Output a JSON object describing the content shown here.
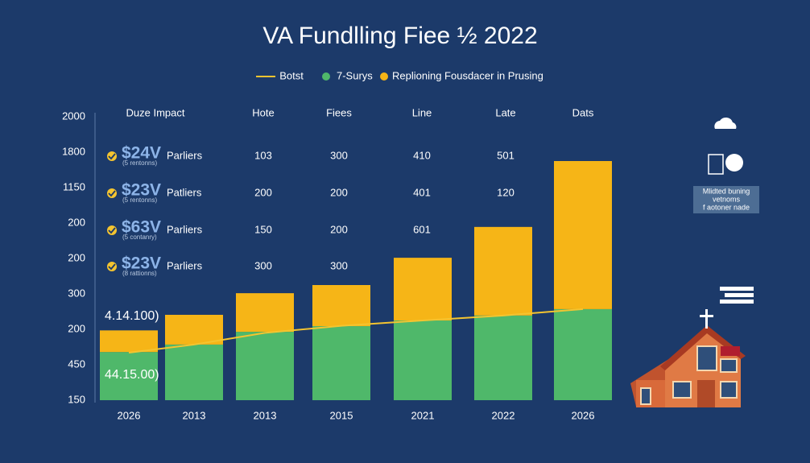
{
  "chart_data": {
    "type": "bar",
    "title": "VA Fundlling Fiee ½ 2022",
    "categories": [
      "2026",
      "2013",
      "2013",
      "2015",
      "2021",
      "2022",
      "2026"
    ],
    "series": [
      {
        "name": "Botst",
        "type": "line",
        "color": "#f4c430",
        "values": [
          1.34,
          1.57,
          1.9,
          2.1,
          2.25,
          2.39,
          2.57
        ]
      },
      {
        "name": "7-Surys",
        "type": "bar",
        "color": "#4fb86a",
        "values": [
          1.36,
          1.57,
          1.93,
          2.09,
          2.25,
          2.39,
          2.57
        ]
      },
      {
        "name": "Replioning Fousdacer in Prusing",
        "type": "bar",
        "color": "#f6b517",
        "values": [
          0.61,
          0.84,
          1.09,
          1.16,
          1.77,
          2.5,
          4.18
        ]
      }
    ],
    "ylim": [
      0,
      8
    ],
    "yticks": [
      {
        "value": 8,
        "label": "2000"
      },
      {
        "value": 7,
        "label": "1800"
      },
      {
        "value": 6,
        "label": "1150"
      },
      {
        "value": 5,
        "label": "200"
      },
      {
        "value": 4,
        "label": "200"
      },
      {
        "value": 3,
        "label": "300"
      },
      {
        "value": 2,
        "label": "200"
      },
      {
        "value": 1,
        "label": "450"
      },
      {
        "value": 0,
        "label": "150"
      }
    ],
    "stacked": true,
    "annotations": [
      "4.14.100)",
      "44.15.00)"
    ]
  },
  "table": {
    "header": [
      "Duze Impact",
      "Hote",
      "Fiees",
      "Line",
      "Late",
      "Dats"
    ],
    "rows": [
      [
        "$24V",
        "(5 rentonns)",
        "Parliers",
        103,
        300,
        410,
        501
      ],
      [
        "$23V",
        "(5 rentonns)",
        "Patliers",
        200,
        200,
        401,
        120
      ],
      [
        "$63V",
        "(5 contanry)",
        "Parliers",
        150,
        200,
        601
      ],
      [
        "$23V",
        "(8 rattionns)",
        "Parliers",
        300,
        300
      ]
    ]
  },
  "side_note": [
    "Mlidted buning",
    "vetnoms",
    "f aotoner nade"
  ]
}
